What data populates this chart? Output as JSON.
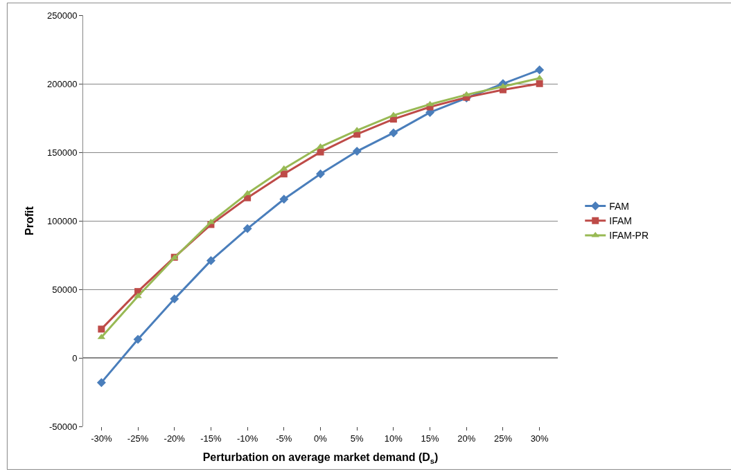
{
  "chart_data": {
    "type": "line",
    "xlabel": "Perturbation on average market demand (D$_{s}$)",
    "ylabel": "Profit",
    "categories": [
      "-30%",
      "-25%",
      "-20%",
      "-15%",
      "-10%",
      "-5%",
      "0%",
      "5%",
      "10%",
      "15%",
      "20%",
      "25%",
      "30%"
    ],
    "series": [
      {
        "name": "FAM",
        "color": "#4a7ebb",
        "marker": "diamond",
        "values": [
          -18000,
          13500,
          43000,
          71000,
          94300,
          115800,
          134200,
          150700,
          164200,
          179100,
          189600,
          200100,
          210100
        ]
      },
      {
        "name": "IFAM",
        "color": "#be4b48",
        "marker": "square",
        "values": [
          21000,
          48400,
          73400,
          97300,
          116800,
          134200,
          150200,
          163200,
          174200,
          183100,
          190100,
          195600,
          200100
        ]
      },
      {
        "name": "IFAM-PR",
        "color": "#98b954",
        "marker": "triangle",
        "values": [
          15000,
          45000,
          73000,
          99000,
          120000,
          138000,
          154000,
          166000,
          177000,
          185000,
          192000,
          198000,
          204000
        ]
      }
    ],
    "ylim": [
      -50000,
      250000
    ],
    "yticks": [
      -50000,
      0,
      50000,
      100000,
      150000,
      200000,
      250000
    ],
    "grid": "y",
    "legend": "right"
  }
}
